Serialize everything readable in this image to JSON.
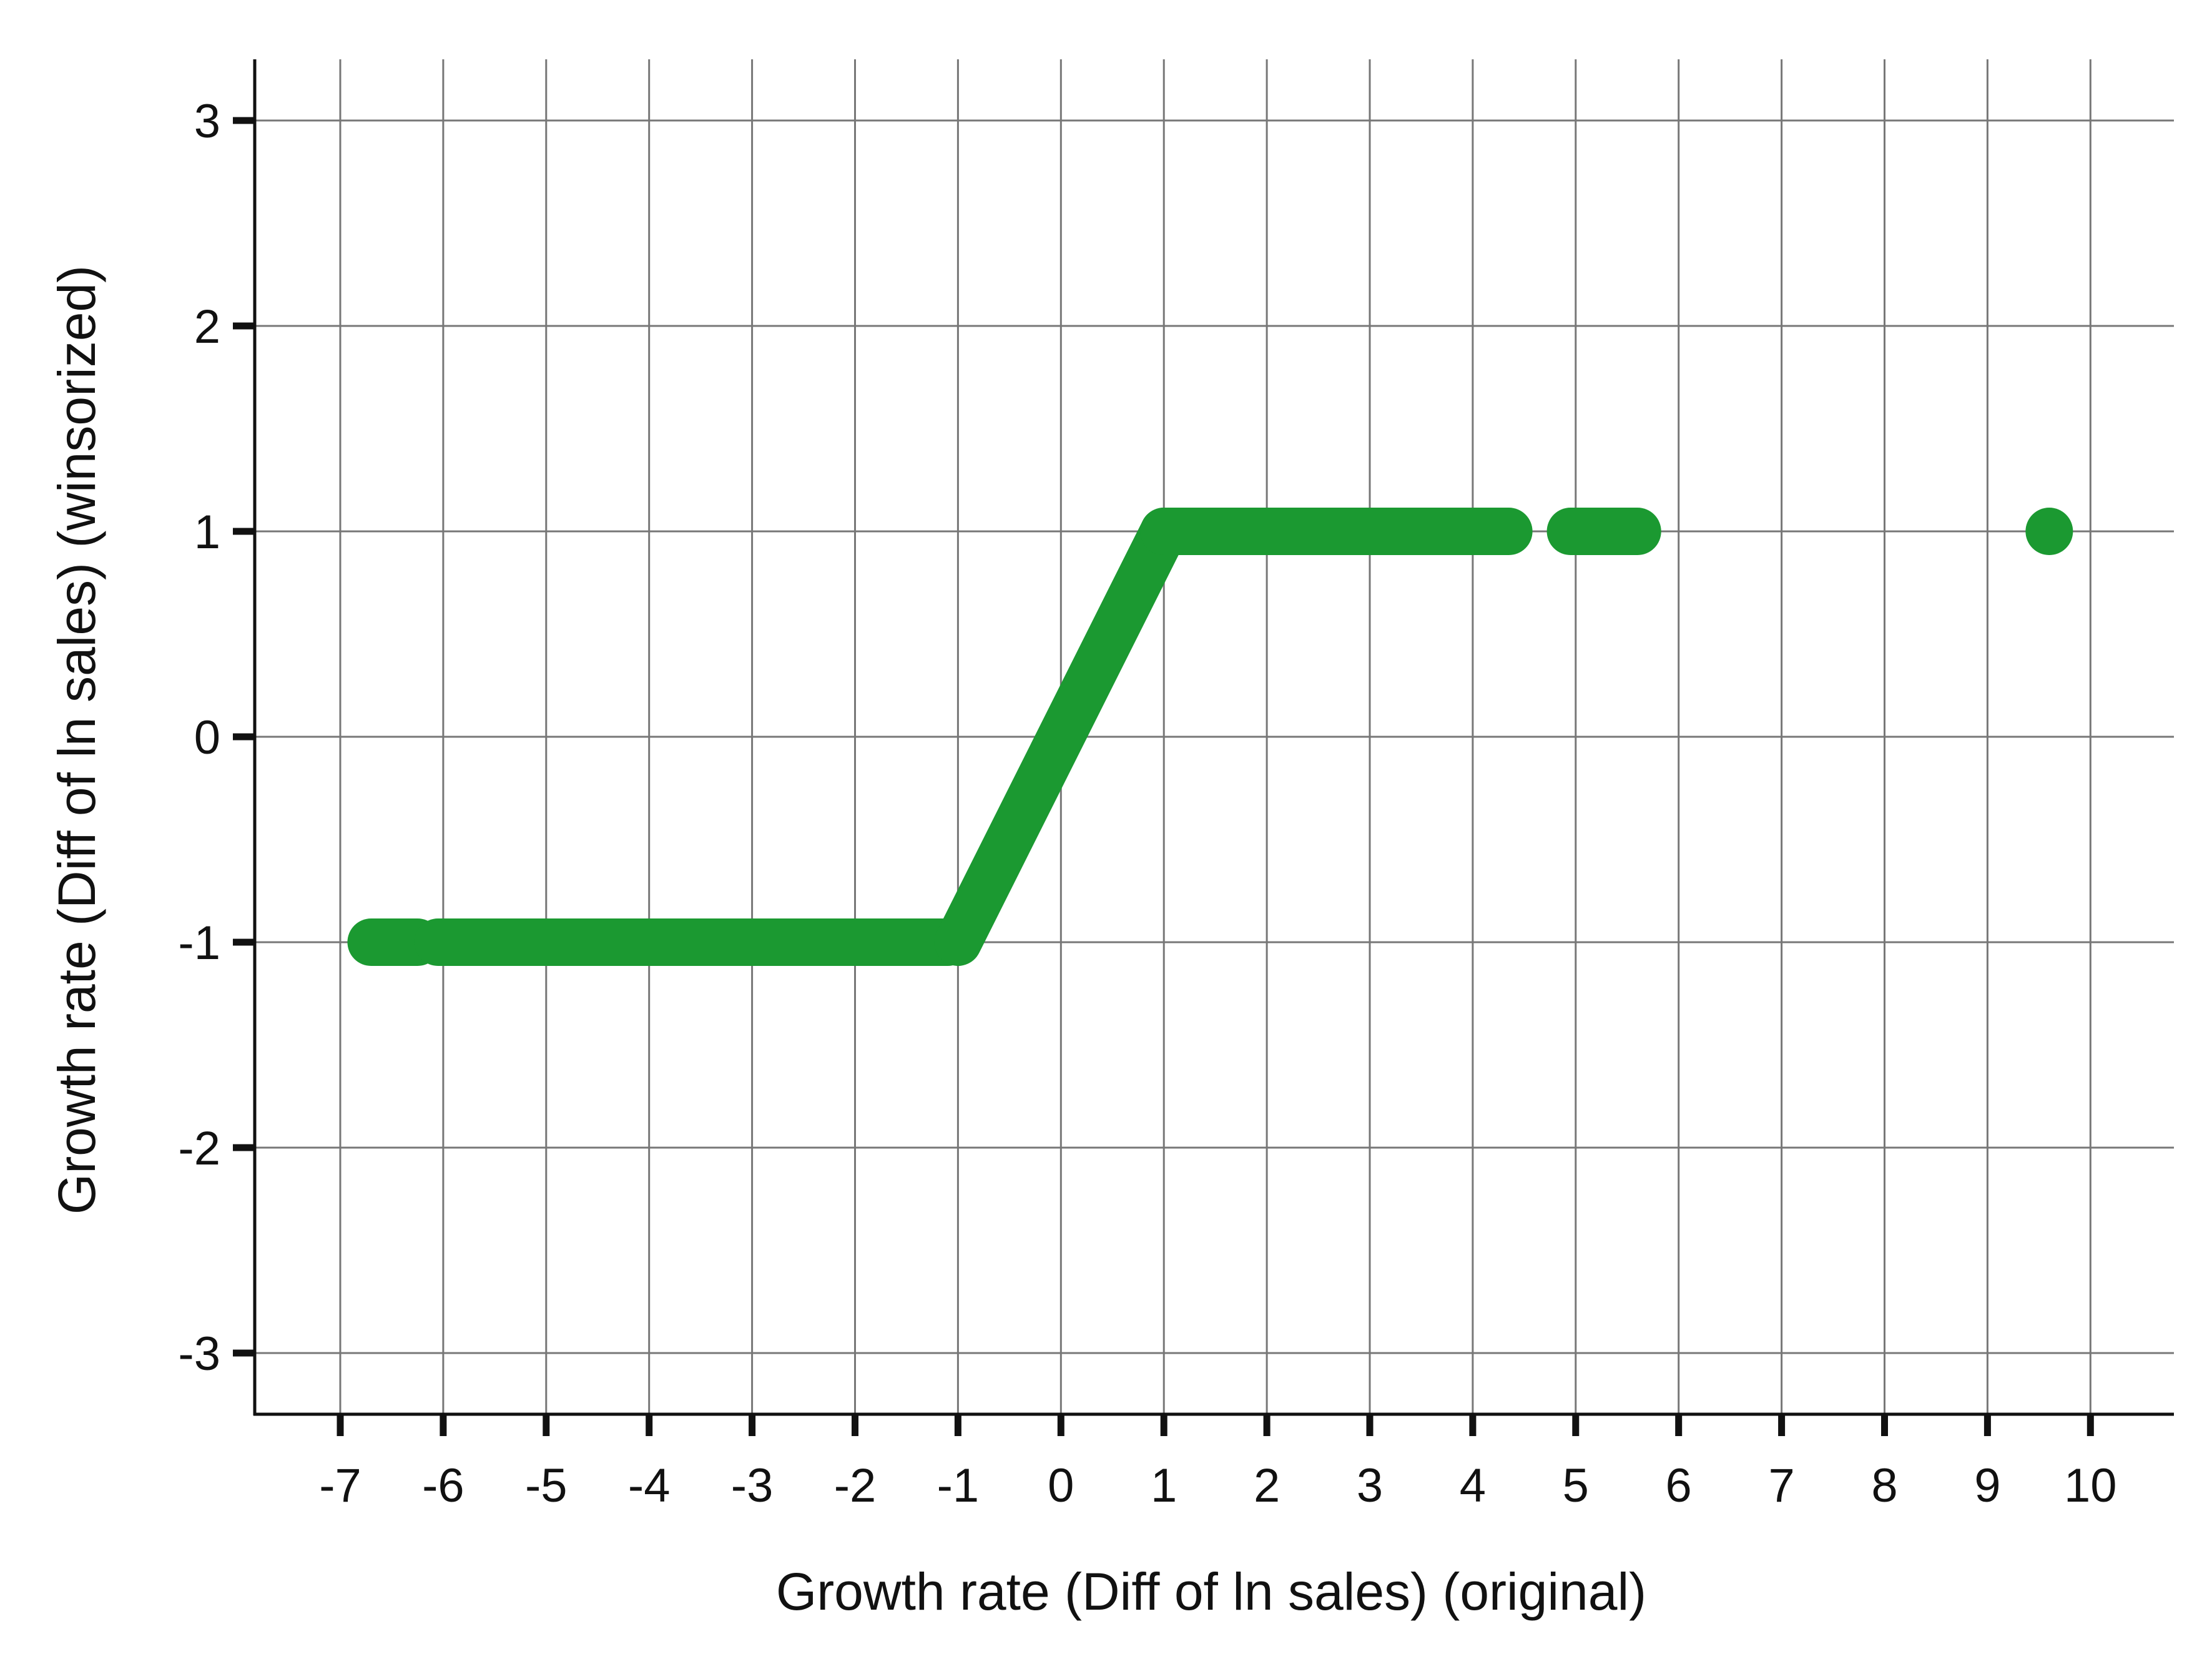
{
  "chart_data": {
    "type": "scatter",
    "title": "",
    "xlabel": "Growth rate (Diff of ln sales) (original)",
    "ylabel": "Growth rate (Diff of ln sales) (winsorized)",
    "xlim": [
      -7.85,
      10.85
    ],
    "ylim": [
      -3.3,
      3.3
    ],
    "xticks": [
      -7,
      -6,
      -5,
      -4,
      -3,
      -2,
      -1,
      0,
      1,
      2,
      3,
      4,
      5,
      6,
      7,
      8,
      9,
      10
    ],
    "xtick_labels": [
      "-7",
      "-6",
      "-5",
      "-4",
      "-3",
      "-2",
      "-1",
      "0",
      "1",
      "2",
      "3",
      "4",
      "5",
      "6",
      "7",
      "8",
      "9",
      "10"
    ],
    "yticks": [
      -3,
      -2,
      -1,
      0,
      1,
      2,
      3
    ],
    "ytick_labels": [
      "-3",
      "-2",
      "-1",
      "0",
      "1",
      "2",
      "3"
    ],
    "grid": true,
    "series": [
      {
        "color": "#1b9931",
        "note_segments": "points are densely packed; represented as clusters",
        "clusters": [
          {
            "x_from": -6.7,
            "x_to": -6.25,
            "y": -1
          },
          {
            "x_from": -6.05,
            "x_to": -1.1,
            "y": -1
          },
          {
            "x_from": -1.0,
            "x_to": 1.0,
            "y": "x"
          },
          {
            "x_from": 1.0,
            "x_to": 4.35,
            "y": 1
          },
          {
            "x_from": 4.95,
            "x_to": 5.6,
            "y": 1
          }
        ],
        "points": [
          {
            "x": 9.6,
            "y": 1
          }
        ]
      }
    ]
  }
}
